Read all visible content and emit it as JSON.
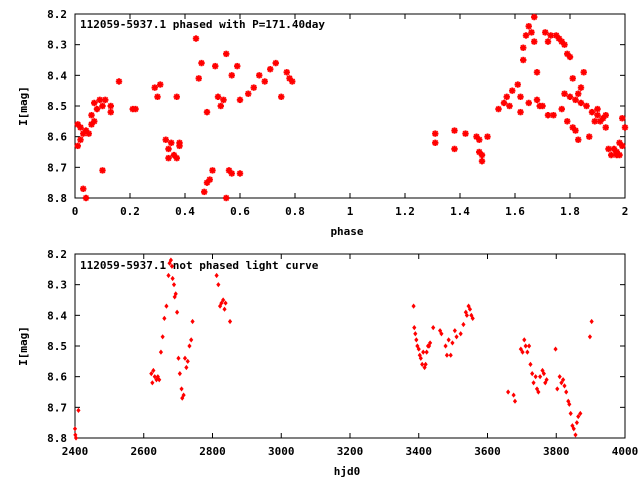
{
  "chart_data": [
    {
      "type": "scatter",
      "title": "112059-5937.1 phased with P=171.40day",
      "xlabel": "phase",
      "ylabel": "I[mag]",
      "xlim": [
        0,
        2
      ],
      "ylim": [
        8.8,
        8.2
      ],
      "y_inverted": true,
      "grid": false,
      "marker_color": "#ff0000",
      "marker": "star",
      "x_ticks": [
        "0",
        "0.2",
        "0.4",
        "0.6",
        "0.8",
        "1",
        "1.2",
        "1.4",
        "1.6",
        "1.8",
        "2"
      ],
      "y_ticks": [
        "8.2",
        "8.3",
        "8.4",
        "8.5",
        "8.6",
        "8.7",
        "8.8"
      ],
      "points": [
        [
          0.01,
          8.63
        ],
        [
          0.01,
          8.56
        ],
        [
          0.02,
          8.57
        ],
        [
          0.02,
          8.61
        ],
        [
          0.03,
          8.59
        ],
        [
          0.03,
          8.77
        ],
        [
          0.04,
          8.8
        ],
        [
          0.04,
          8.58
        ],
        [
          0.05,
          8.59
        ],
        [
          0.06,
          8.53
        ],
        [
          0.06,
          8.56
        ],
        [
          0.07,
          8.49
        ],
        [
          0.07,
          8.55
        ],
        [
          0.08,
          8.51
        ],
        [
          0.09,
          8.48
        ],
        [
          0.1,
          8.5
        ],
        [
          0.1,
          8.71
        ],
        [
          0.11,
          8.48
        ],
        [
          0.13,
          8.5
        ],
        [
          0.13,
          8.52
        ],
        [
          0.16,
          8.42
        ],
        [
          0.21,
          8.51
        ],
        [
          0.22,
          8.51
        ],
        [
          0.29,
          8.44
        ],
        [
          0.3,
          8.47
        ],
        [
          0.31,
          8.43
        ],
        [
          0.33,
          8.61
        ],
        [
          0.34,
          8.67
        ],
        [
          0.34,
          8.64
        ],
        [
          0.35,
          8.62
        ],
        [
          0.36,
          8.66
        ],
        [
          0.37,
          8.67
        ],
        [
          0.37,
          8.47
        ],
        [
          0.38,
          8.62
        ],
        [
          0.38,
          8.63
        ],
        [
          0.44,
          8.28
        ],
        [
          0.45,
          8.41
        ],
        [
          0.46,
          8.36
        ],
        [
          0.47,
          8.78
        ],
        [
          0.48,
          8.75
        ],
        [
          0.48,
          8.52
        ],
        [
          0.49,
          8.74
        ],
        [
          0.5,
          8.71
        ],
        [
          0.51,
          8.37
        ],
        [
          0.52,
          8.47
        ],
        [
          0.53,
          8.5
        ],
        [
          0.54,
          8.48
        ],
        [
          0.55,
          8.8
        ],
        [
          0.55,
          8.33
        ],
        [
          0.56,
          8.71
        ],
        [
          0.57,
          8.72
        ],
        [
          0.57,
          8.4
        ],
        [
          0.59,
          8.37
        ],
        [
          0.6,
          8.72
        ],
        [
          0.6,
          8.48
        ],
        [
          0.63,
          8.46
        ],
        [
          0.65,
          8.44
        ],
        [
          0.67,
          8.4
        ],
        [
          0.69,
          8.42
        ],
        [
          0.71,
          8.38
        ],
        [
          0.73,
          8.36
        ],
        [
          0.75,
          8.47
        ],
        [
          0.77,
          8.39
        ],
        [
          0.78,
          8.41
        ],
        [
          0.79,
          8.42
        ],
        [
          1.31,
          8.59
        ],
        [
          1.31,
          8.62
        ],
        [
          1.38,
          8.58
        ],
        [
          1.38,
          8.64
        ],
        [
          1.42,
          8.59
        ],
        [
          1.46,
          8.6
        ],
        [
          1.47,
          8.61
        ],
        [
          1.47,
          8.65
        ],
        [
          1.48,
          8.68
        ],
        [
          1.48,
          8.66
        ],
        [
          1.5,
          8.6
        ],
        [
          1.54,
          8.51
        ],
        [
          1.56,
          8.49
        ],
        [
          1.57,
          8.47
        ],
        [
          1.58,
          8.5
        ],
        [
          1.59,
          8.45
        ],
        [
          1.61,
          8.43
        ],
        [
          1.62,
          8.47
        ],
        [
          1.62,
          8.52
        ],
        [
          1.63,
          8.35
        ],
        [
          1.63,
          8.31
        ],
        [
          1.64,
          8.27
        ],
        [
          1.65,
          8.24
        ],
        [
          1.65,
          8.49
        ],
        [
          1.66,
          8.26
        ],
        [
          1.67,
          8.29
        ],
        [
          1.67,
          8.21
        ],
        [
          1.68,
          8.39
        ],
        [
          1.68,
          8.48
        ],
        [
          1.69,
          8.5
        ],
        [
          1.7,
          8.5
        ],
        [
          1.71,
          8.26
        ],
        [
          1.72,
          8.29
        ],
        [
          1.72,
          8.53
        ],
        [
          1.73,
          8.27
        ],
        [
          1.74,
          8.53
        ],
        [
          1.75,
          8.27
        ],
        [
          1.76,
          8.28
        ],
        [
          1.77,
          8.29
        ],
        [
          1.77,
          8.51
        ],
        [
          1.78,
          8.3
        ],
        [
          1.78,
          8.46
        ],
        [
          1.79,
          8.33
        ],
        [
          1.79,
          8.55
        ],
        [
          1.8,
          8.34
        ],
        [
          1.8,
          8.47
        ],
        [
          1.81,
          8.41
        ],
        [
          1.81,
          8.57
        ],
        [
          1.82,
          8.58
        ],
        [
          1.82,
          8.48
        ],
        [
          1.83,
          8.46
        ],
        [
          1.83,
          8.61
        ],
        [
          1.84,
          8.44
        ],
        [
          1.84,
          8.49
        ],
        [
          1.85,
          8.39
        ],
        [
          1.86,
          8.5
        ],
        [
          1.87,
          8.6
        ],
        [
          1.88,
          8.52
        ],
        [
          1.89,
          8.55
        ],
        [
          1.9,
          8.53
        ],
        [
          1.9,
          8.51
        ],
        [
          1.91,
          8.55
        ],
        [
          1.92,
          8.54
        ],
        [
          1.93,
          8.53
        ],
        [
          1.93,
          8.57
        ],
        [
          1.94,
          8.64
        ],
        [
          1.95,
          8.66
        ],
        [
          1.96,
          8.64
        ],
        [
          1.97,
          8.66
        ],
        [
          1.97,
          8.65
        ],
        [
          1.98,
          8.62
        ],
        [
          1.98,
          8.66
        ],
        [
          1.99,
          8.63
        ],
        [
          1.99,
          8.54
        ],
        [
          2.0,
          8.57
        ]
      ]
    },
    {
      "type": "scatter",
      "title": "112059-5937.1 not phased light curve",
      "xlabel": "hjd0",
      "ylabel": "I[mag]",
      "xlim": [
        2400,
        4000
      ],
      "ylim": [
        8.8,
        8.2
      ],
      "y_inverted": true,
      "grid": false,
      "marker_color": "#ff0000",
      "marker": "diamond",
      "x_ticks": [
        "2400",
        "2600",
        "2800",
        "3000",
        "3200",
        "3400",
        "3600",
        "3800",
        "4000"
      ],
      "y_ticks": [
        "8.2",
        "8.3",
        "8.4",
        "8.5",
        "8.6",
        "8.7",
        "8.8"
      ],
      "points": [
        [
          2400,
          8.77
        ],
        [
          2401,
          8.79
        ],
        [
          2403,
          8.8
        ],
        [
          2410,
          8.71
        ],
        [
          2622,
          8.59
        ],
        [
          2625,
          8.62
        ],
        [
          2628,
          8.58
        ],
        [
          2632,
          8.6
        ],
        [
          2637,
          8.61
        ],
        [
          2641,
          8.6
        ],
        [
          2645,
          8.61
        ],
        [
          2650,
          8.52
        ],
        [
          2655,
          8.47
        ],
        [
          2660,
          8.41
        ],
        [
          2666,
          8.37
        ],
        [
          2672,
          8.27
        ],
        [
          2675,
          8.23
        ],
        [
          2679,
          8.22
        ],
        [
          2682,
          8.24
        ],
        [
          2684,
          8.28
        ],
        [
          2688,
          8.3
        ],
        [
          2690,
          8.34
        ],
        [
          2693,
          8.33
        ],
        [
          2697,
          8.39
        ],
        [
          2701,
          8.54
        ],
        [
          2705,
          8.59
        ],
        [
          2710,
          8.64
        ],
        [
          2712,
          8.67
        ],
        [
          2716,
          8.66
        ],
        [
          2720,
          8.54
        ],
        [
          2724,
          8.57
        ],
        [
          2728,
          8.55
        ],
        [
          2733,
          8.5
        ],
        [
          2738,
          8.48
        ],
        [
          2742,
          8.42
        ],
        [
          2812,
          8.27
        ],
        [
          2817,
          8.3
        ],
        [
          2822,
          8.37
        ],
        [
          2826,
          8.36
        ],
        [
          2831,
          8.35
        ],
        [
          2835,
          8.38
        ],
        [
          2838,
          8.36
        ],
        [
          2851,
          8.42
        ],
        [
          3385,
          8.37
        ],
        [
          3387,
          8.44
        ],
        [
          3390,
          8.46
        ],
        [
          3393,
          8.48
        ],
        [
          3396,
          8.5
        ],
        [
          3400,
          8.51
        ],
        [
          3403,
          8.53
        ],
        [
          3406,
          8.54
        ],
        [
          3410,
          8.56
        ],
        [
          3413,
          8.52
        ],
        [
          3417,
          8.57
        ],
        [
          3420,
          8.56
        ],
        [
          3423,
          8.52
        ],
        [
          3427,
          8.5
        ],
        [
          3430,
          8.5
        ],
        [
          3433,
          8.49
        ],
        [
          3442,
          8.44
        ],
        [
          3462,
          8.45
        ],
        [
          3466,
          8.46
        ],
        [
          3478,
          8.5
        ],
        [
          3482,
          8.53
        ],
        [
          3487,
          8.48
        ],
        [
          3493,
          8.53
        ],
        [
          3498,
          8.49
        ],
        [
          3505,
          8.45
        ],
        [
          3510,
          8.47
        ],
        [
          3522,
          8.46
        ],
        [
          3530,
          8.43
        ],
        [
          3537,
          8.39
        ],
        [
          3540,
          8.4
        ],
        [
          3545,
          8.37
        ],
        [
          3549,
          8.38
        ],
        [
          3553,
          8.4
        ],
        [
          3557,
          8.41
        ],
        [
          3660,
          8.65
        ],
        [
          3676,
          8.66
        ],
        [
          3680,
          8.68
        ],
        [
          3697,
          8.51
        ],
        [
          3702,
          8.52
        ],
        [
          3707,
          8.48
        ],
        [
          3711,
          8.5
        ],
        [
          3716,
          8.52
        ],
        [
          3721,
          8.5
        ],
        [
          3725,
          8.56
        ],
        [
          3730,
          8.59
        ],
        [
          3734,
          8.62
        ],
        [
          3740,
          8.6
        ],
        [
          3744,
          8.64
        ],
        [
          3748,
          8.65
        ],
        [
          3753,
          8.6
        ],
        [
          3760,
          8.58
        ],
        [
          3764,
          8.59
        ],
        [
          3768,
          8.62
        ],
        [
          3772,
          8.61
        ],
        [
          3798,
          8.51
        ],
        [
          3803,
          8.64
        ],
        [
          3810,
          8.6
        ],
        [
          3815,
          8.62
        ],
        [
          3820,
          8.61
        ],
        [
          3824,
          8.63
        ],
        [
          3829,
          8.65
        ],
        [
          3835,
          8.68
        ],
        [
          3838,
          8.69
        ],
        [
          3842,
          8.72
        ],
        [
          3847,
          8.76
        ],
        [
          3851,
          8.77
        ],
        [
          3856,
          8.79
        ],
        [
          3860,
          8.75
        ],
        [
          3864,
          8.73
        ],
        [
          3870,
          8.72
        ],
        [
          3898,
          8.47
        ],
        [
          3903,
          8.42
        ]
      ]
    }
  ]
}
